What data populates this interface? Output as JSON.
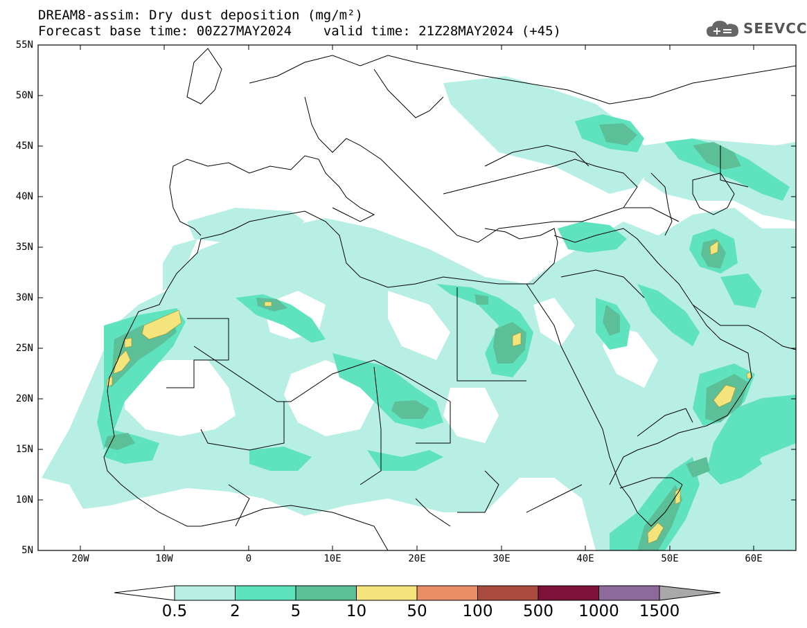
{
  "title_line1": "DREAM8-assim: Dry dust deposition (mg/m²)",
  "title_line2": "Forecast base time: 00Z27MAY2024    valid time: 21Z28MAY2024 (+45)",
  "logo_text": "SEEVCCC",
  "lat_labels": [
    "55N",
    "50N",
    "45N",
    "40N",
    "35N",
    "30N",
    "25N",
    "20N",
    "15N",
    "10N",
    "5N"
  ],
  "lon_labels": [
    "20W",
    "10W",
    "0",
    "10E",
    "20E",
    "30E",
    "40E",
    "50E",
    "60E"
  ],
  "colorbar": {
    "thresholds": [
      "0.5",
      "2",
      "5",
      "10",
      "50",
      "100",
      "500",
      "1000",
      "1500"
    ],
    "colors": [
      "#ffffff",
      "#b8efe4",
      "#5fe3bf",
      "#5cbf97",
      "#f3e47c",
      "#e98f68",
      "#a94b3f",
      "#7d1137",
      "#8e6a9b",
      "#a9a9a9"
    ]
  },
  "map": {
    "lon_range": [
      -25,
      65
    ],
    "lat_range": [
      5,
      55
    ],
    "palette": {
      "light": "#b8efe4",
      "mid": "#5fe3bf",
      "dark": "#5cbf97",
      "yellow": "#f3e47c"
    }
  }
}
